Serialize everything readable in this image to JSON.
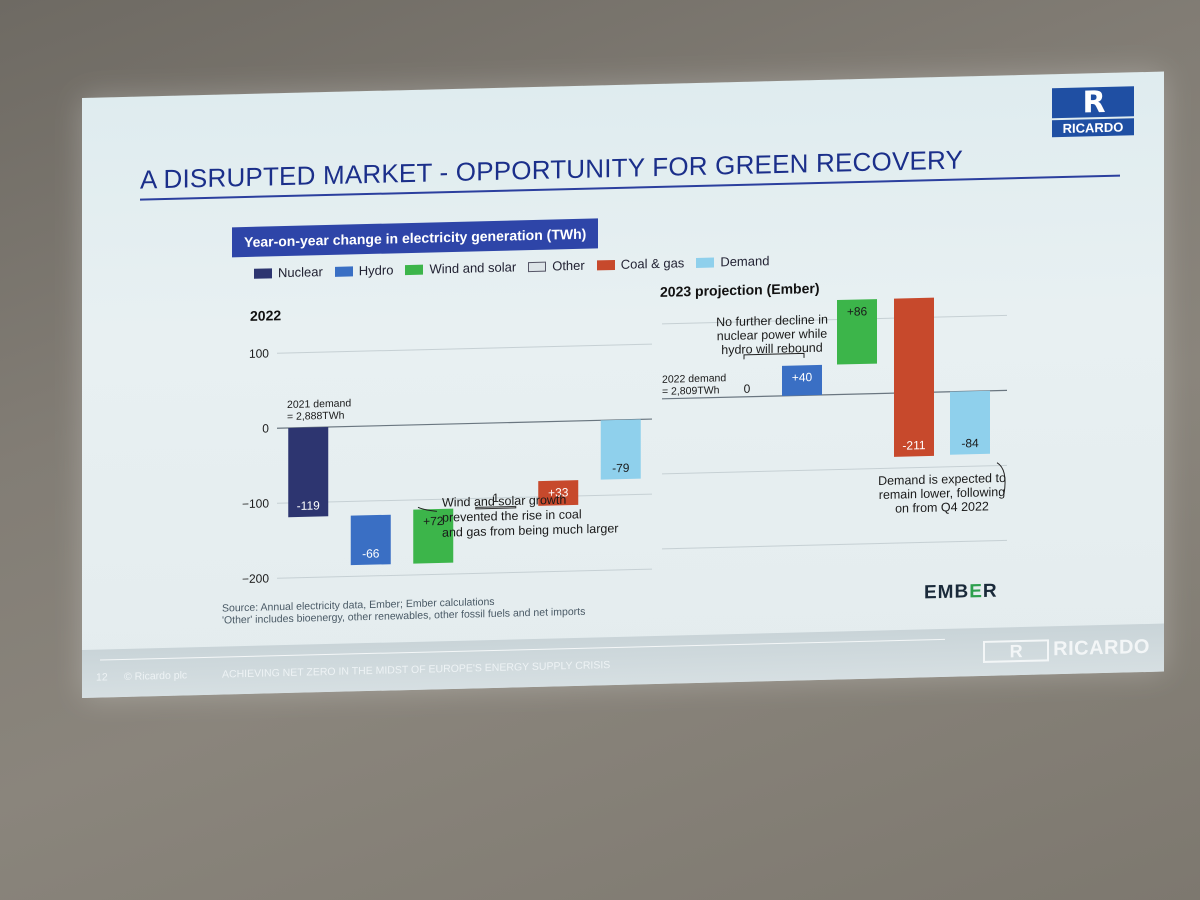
{
  "slide": {
    "title": "A DISRUPTED MARKET - OPPORTUNITY FOR GREEN RECOVERY",
    "logo_text": "RICARDO",
    "logo_mark": "R",
    "source_line1": "Source: Annual electricity data, Ember; Ember calculations",
    "source_line2": "'Other' includes bioenergy, other renewables, other fossil fuels and net imports",
    "ember_brand_left": "EMB",
    "ember_brand_mid": "E",
    "ember_brand_right": "R",
    "footer_page": "12",
    "footer_copyright": "© Ricardo plc",
    "footer_title": "ACHIEVING NET ZERO IN THE MIDST OF EUROPE'S ENERGY SUPPLY CRISIS",
    "footer_logo_text": "RICARDO"
  },
  "colors": {
    "Nuclear": "#2d3570",
    "Hydro": "#3a6fc4",
    "Wind and solar": "#3cb54a",
    "Other": "#dde4e8",
    "Coal & gas": "#c7492c",
    "Demand": "#8fd0ec"
  },
  "chart_data": [
    {
      "type": "bar",
      "subtype": "waterfall",
      "banner": "Year-on-year change in electricity generation (TWh)",
      "legend": [
        "Nuclear",
        "Hydro",
        "Wind and solar",
        "Other",
        "Coal & gas",
        "Demand"
      ],
      "title": "2022",
      "ylim": [
        -200,
        100
      ],
      "yticks": [
        100,
        0,
        -100,
        -200
      ],
      "baseline_label": "2021 demand\n= 2,888TWh",
      "categories": [
        "Nuclear",
        "Hydro",
        "Wind and solar",
        "Other",
        "Coal & gas",
        "Demand"
      ],
      "values": [
        -119,
        -66,
        72,
        1,
        33,
        -79
      ],
      "labels": [
        "-119",
        "-66",
        "+72",
        "1",
        "+33",
        "-79"
      ],
      "annotations": [
        "Wind and solar growth\nprevented the rise in coal\nand gas from being much larger"
      ]
    },
    {
      "type": "bar",
      "subtype": "waterfall",
      "title": "2023 projection (Ember)",
      "baseline_label": "2022 demand\n= 2,809TWh",
      "categories": [
        "Nuclear",
        "Hydro",
        "Wind and solar",
        "Coal & gas",
        "Demand"
      ],
      "values": [
        0,
        40,
        86,
        -211,
        -84
      ],
      "labels": [
        "0",
        "+40",
        "+86",
        "-211",
        "-84"
      ],
      "annotations": [
        "No further decline in\nnuclear power while\nhydro will rebound",
        "Demand is expected to\nremain lower, following\non from Q4 2022"
      ]
    }
  ]
}
